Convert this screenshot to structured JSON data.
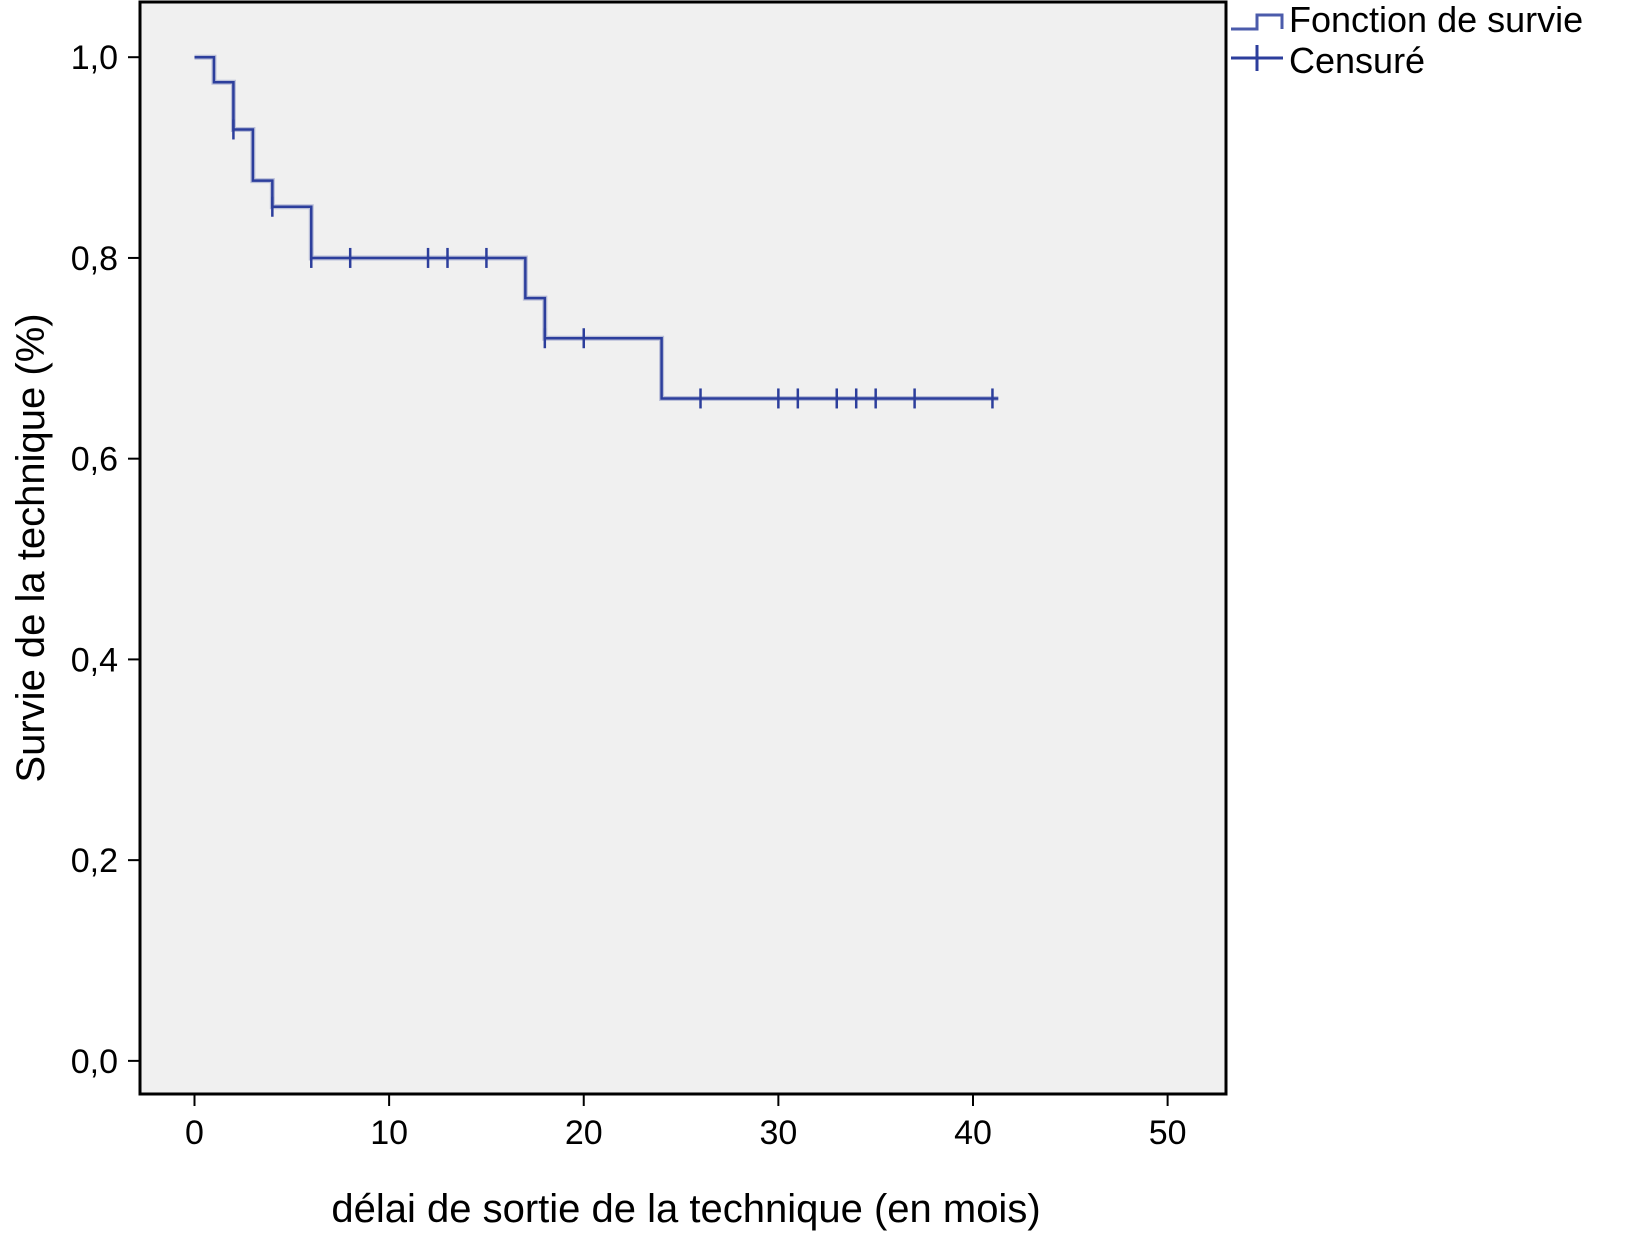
{
  "chart_data": {
    "type": "line",
    "subtype": "kaplan-meier-step",
    "xlabel": "délai de sortie de la technique (en mois)",
    "ylabel": "Survie de la technique (%)",
    "xlim": [
      -2.8,
      53
    ],
    "ylim": [
      -0.033,
      1.055
    ],
    "x_ticks": [
      0,
      10,
      20,
      30,
      40,
      50
    ],
    "x_tick_labels": [
      "0",
      "10",
      "20",
      "30",
      "40",
      "50"
    ],
    "y_ticks": [
      0.0,
      0.2,
      0.4,
      0.6,
      0.8,
      1.0
    ],
    "y_tick_labels": [
      "0,0",
      "0,2",
      "0,4",
      "0,6",
      "0,8",
      "1,0"
    ],
    "grid": false,
    "plot_background": "#f0f0f0",
    "legend": {
      "position": "top-right, outside plot",
      "entries": [
        {
          "label": "Fonction de survie",
          "symbol": "step-line-icon"
        },
        {
          "label": "Censuré",
          "symbol": "censor-cross-icon"
        }
      ]
    },
    "series": [
      {
        "name": "Fonction de survie",
        "color": "#2c3e9c",
        "steps": [
          {
            "x": 0,
            "y": 1.0
          },
          {
            "x": 1,
            "y": 0.975
          },
          {
            "x": 2,
            "y": 0.928
          },
          {
            "x": 3,
            "y": 0.877
          },
          {
            "x": 4,
            "y": 0.851
          },
          {
            "x": 6,
            "y": 0.8
          },
          {
            "x": 17,
            "y": 0.76
          },
          {
            "x": 18,
            "y": 0.72
          },
          {
            "x": 24,
            "y": 0.66
          }
        ],
        "end_x": 41.3
      },
      {
        "name": "Censuré",
        "color": "#2c3e9c",
        "points": [
          {
            "x": 2,
            "y": 0.928
          },
          {
            "x": 4,
            "y": 0.851
          },
          {
            "x": 6,
            "y": 0.8
          },
          {
            "x": 8,
            "y": 0.8
          },
          {
            "x": 12,
            "y": 0.8
          },
          {
            "x": 13,
            "y": 0.8
          },
          {
            "x": 15,
            "y": 0.8
          },
          {
            "x": 18,
            "y": 0.72
          },
          {
            "x": 20,
            "y": 0.72
          },
          {
            "x": 26,
            "y": 0.66
          },
          {
            "x": 30,
            "y": 0.66
          },
          {
            "x": 31,
            "y": 0.66
          },
          {
            "x": 33,
            "y": 0.66
          },
          {
            "x": 34,
            "y": 0.66
          },
          {
            "x": 35,
            "y": 0.66
          },
          {
            "x": 37,
            "y": 0.66
          },
          {
            "x": 41,
            "y": 0.66
          }
        ]
      }
    ]
  }
}
